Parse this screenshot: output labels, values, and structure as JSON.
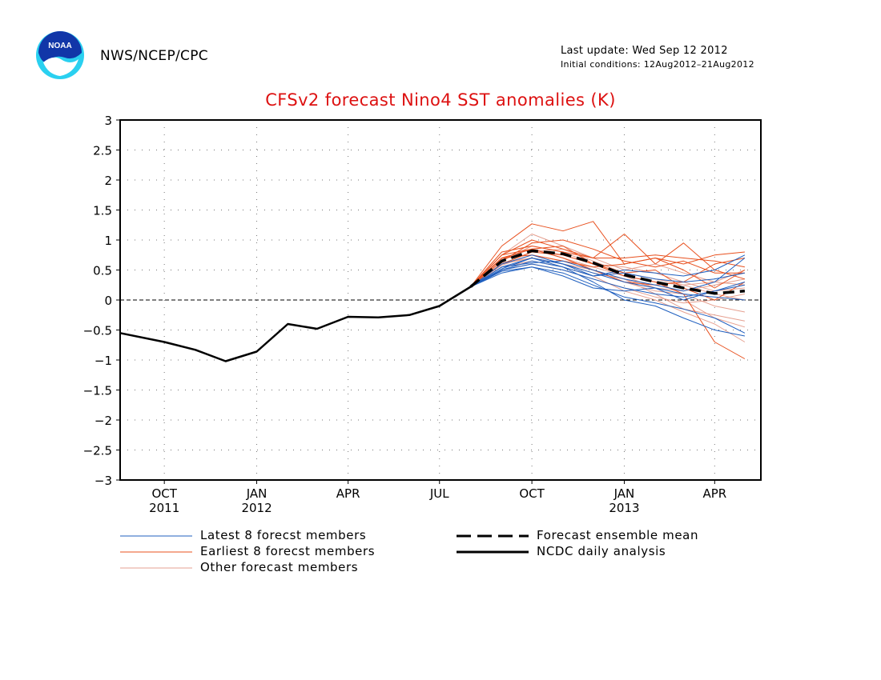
{
  "header": {
    "agency": "NWS/NCEP/CPC",
    "last_update": "Last update: Wed Sep 12 2012",
    "initial_conditions": "Initial conditions: 12Aug2012–21Aug2012"
  },
  "colors": {
    "title": "#dd1111",
    "latest": "#1f5fbf",
    "earliest": "#e8501e",
    "other": "#e6a090",
    "analysis": "#000000",
    "mean": "#000000",
    "noaa_blue": "#1136a8",
    "noaa_cyan": "#2ad0f0"
  },
  "icons": {
    "logo": "noaa-logo"
  },
  "chart_data": {
    "type": "line",
    "title": "CFSv2 forecast Nino4 SST anomalies (K)",
    "xlabel": "",
    "ylabel": "",
    "ylim": [
      -3,
      3
    ],
    "yticks": [
      -3,
      -2.5,
      -2,
      -1.5,
      -1,
      -0.5,
      0,
      0.5,
      1,
      1.5,
      2,
      2.5,
      3
    ],
    "ytick_labels": [
      "−3",
      "−2.5",
      "−2",
      "−1.5",
      "−1",
      "−0.5",
      "0",
      "0.5",
      "1",
      "1.5",
      "2",
      "2.5",
      "3"
    ],
    "xlim": [
      "2011-09-01",
      "2013-05-31"
    ],
    "xticks": [
      {
        "date": "2011-10-15",
        "label": "OCT",
        "year": "2011"
      },
      {
        "date": "2012-01-15",
        "label": "JAN",
        "year": "2012"
      },
      {
        "date": "2012-04-15",
        "label": "APR",
        "year": ""
      },
      {
        "date": "2012-07-15",
        "label": "JUL",
        "year": ""
      },
      {
        "date": "2012-10-15",
        "label": "OCT",
        "year": ""
      },
      {
        "date": "2013-01-15",
        "label": "JAN",
        "year": "2013"
      },
      {
        "date": "2013-04-15",
        "label": "APR",
        "year": ""
      }
    ],
    "grid": true,
    "zero_line": true,
    "legend_placement": "below",
    "legend": [
      {
        "label": "Latest 8 forecst members",
        "style": "thin",
        "color": "#1f5fbf"
      },
      {
        "label": "Earliest 8 forecst members",
        "style": "thin",
        "color": "#e8501e"
      },
      {
        "label": "Other forecast members",
        "style": "thin",
        "color": "#e6a090"
      },
      {
        "label": "Forecast ensemble mean",
        "style": "dashed",
        "color": "#000000"
      },
      {
        "label": "NCDC daily analysis",
        "style": "solid",
        "color": "#000000"
      }
    ],
    "forecast_dates": [
      "2012-08-15",
      "2012-09-15",
      "2012-10-15",
      "2012-11-15",
      "2012-12-15",
      "2013-01-15",
      "2013-02-15",
      "2013-03-15",
      "2013-04-15",
      "2013-05-15"
    ],
    "analysis": {
      "name": "NCDC daily analysis",
      "x": [
        "2011-09-01",
        "2011-10-15",
        "2011-11-15",
        "2011-12-15",
        "2012-01-15",
        "2012-02-15",
        "2012-03-15",
        "2012-04-15",
        "2012-05-15",
        "2012-06-15",
        "2012-07-15",
        "2012-08-15"
      ],
      "y": [
        -0.55,
        -0.7,
        -0.83,
        -1.02,
        -0.86,
        -0.4,
        -0.48,
        -0.28,
        -0.29,
        -0.25,
        -0.1,
        0.22
      ]
    },
    "ensemble_mean": {
      "name": "Forecast ensemble mean",
      "y": [
        0.22,
        0.65,
        0.82,
        0.77,
        0.62,
        0.42,
        0.3,
        0.2,
        0.11,
        0.15
      ]
    },
    "series": [
      {
        "group": "latest",
        "y": [
          0.22,
          0.5,
          0.6,
          0.5,
          0.35,
          0.2,
          0.1,
          0.05,
          0.15,
          0.25
        ]
      },
      {
        "group": "latest",
        "y": [
          0.22,
          0.55,
          0.7,
          0.6,
          0.45,
          0.3,
          0.2,
          0.1,
          0.05,
          0.0
        ]
      },
      {
        "group": "latest",
        "y": [
          0.22,
          0.45,
          0.55,
          0.45,
          0.25,
          0.05,
          -0.05,
          -0.15,
          -0.3,
          -0.55
        ]
      },
      {
        "group": "latest",
        "y": [
          0.22,
          0.6,
          0.75,
          0.6,
          0.4,
          0.45,
          0.35,
          0.3,
          0.35,
          0.45
        ]
      },
      {
        "group": "latest",
        "y": [
          0.22,
          0.5,
          0.65,
          0.55,
          0.3,
          0.0,
          -0.1,
          -0.3,
          -0.5,
          -0.6
        ]
      },
      {
        "group": "latest",
        "y": [
          0.22,
          0.55,
          0.62,
          0.65,
          0.5,
          0.35,
          0.25,
          0.15,
          0.3,
          0.7
        ]
      },
      {
        "group": "latest",
        "y": [
          0.22,
          0.48,
          0.55,
          0.4,
          0.2,
          0.15,
          0.2,
          0.0,
          0.15,
          0.3
        ]
      },
      {
        "group": "latest",
        "y": [
          0.22,
          0.52,
          0.7,
          0.55,
          0.4,
          0.5,
          0.45,
          0.4,
          0.5,
          0.75
        ]
      },
      {
        "group": "earliest",
        "y": [
          0.22,
          0.9,
          1.27,
          1.15,
          1.31,
          0.6,
          0.7,
          0.6,
          0.75,
          0.8
        ]
      },
      {
        "group": "earliest",
        "y": [
          0.22,
          0.75,
          1.0,
          0.85,
          0.7,
          1.1,
          0.6,
          0.95,
          0.5,
          0.35
        ]
      },
      {
        "group": "earliest",
        "y": [
          0.22,
          0.7,
          0.85,
          0.9,
          0.6,
          0.4,
          0.3,
          0.1,
          -0.7,
          -0.98
        ]
      },
      {
        "group": "earliest",
        "y": [
          0.22,
          0.8,
          0.9,
          0.8,
          0.7,
          0.7,
          0.75,
          0.7,
          0.65,
          0.55
        ]
      },
      {
        "group": "earliest",
        "y": [
          0.22,
          0.6,
          0.8,
          0.75,
          0.6,
          0.45,
          0.5,
          0.2,
          0.0,
          0.3
        ]
      },
      {
        "group": "earliest",
        "y": [
          0.22,
          0.7,
          0.75,
          0.65,
          0.55,
          0.6,
          0.7,
          0.5,
          0.2,
          0.5
        ]
      },
      {
        "group": "earliest",
        "y": [
          0.22,
          0.65,
          0.95,
          1.0,
          0.85,
          0.65,
          0.55,
          0.65,
          0.45,
          0.45
        ]
      },
      {
        "group": "earliest",
        "y": [
          0.22,
          0.75,
          0.85,
          0.7,
          0.5,
          0.3,
          0.25,
          0.3,
          0.6,
          0.7
        ]
      },
      {
        "group": "other",
        "y": [
          0.22,
          0.6,
          0.7,
          0.6,
          0.45,
          0.35,
          0.2,
          0.15,
          0.25,
          0.35
        ]
      },
      {
        "group": "other",
        "y": [
          0.22,
          0.65,
          0.9,
          0.8,
          0.6,
          0.4,
          0.2,
          0.0,
          -0.3,
          -0.45
        ]
      },
      {
        "group": "other",
        "y": [
          0.22,
          0.55,
          0.65,
          0.55,
          0.4,
          0.15,
          0.0,
          -0.2,
          -0.4,
          -0.7
        ]
      },
      {
        "group": "other",
        "y": [
          0.22,
          0.7,
          0.85,
          0.75,
          0.6,
          0.55,
          0.45,
          0.3,
          0.15,
          0.2
        ]
      },
      {
        "group": "other",
        "y": [
          0.22,
          0.5,
          0.6,
          0.5,
          0.35,
          0.2,
          0.05,
          -0.05,
          0.0,
          0.1
        ]
      },
      {
        "group": "other",
        "y": [
          0.22,
          0.75,
          1.1,
          0.9,
          0.7,
          0.5,
          0.6,
          0.45,
          0.3,
          0.25
        ]
      },
      {
        "group": "other",
        "y": [
          0.22,
          0.6,
          0.8,
          0.85,
          0.65,
          0.45,
          0.35,
          0.25,
          0.3,
          0.5
        ]
      },
      {
        "group": "other",
        "y": [
          0.22,
          0.58,
          0.75,
          0.65,
          0.5,
          0.3,
          0.15,
          0.1,
          -0.1,
          -0.2
        ]
      },
      {
        "group": "other",
        "y": [
          0.22,
          0.68,
          0.85,
          0.7,
          0.55,
          0.4,
          0.3,
          0.25,
          0.1,
          0.0
        ]
      },
      {
        "group": "other",
        "y": [
          0.22,
          0.62,
          0.7,
          0.6,
          0.5,
          0.35,
          0.1,
          -0.15,
          -0.25,
          -0.35
        ]
      }
    ]
  }
}
